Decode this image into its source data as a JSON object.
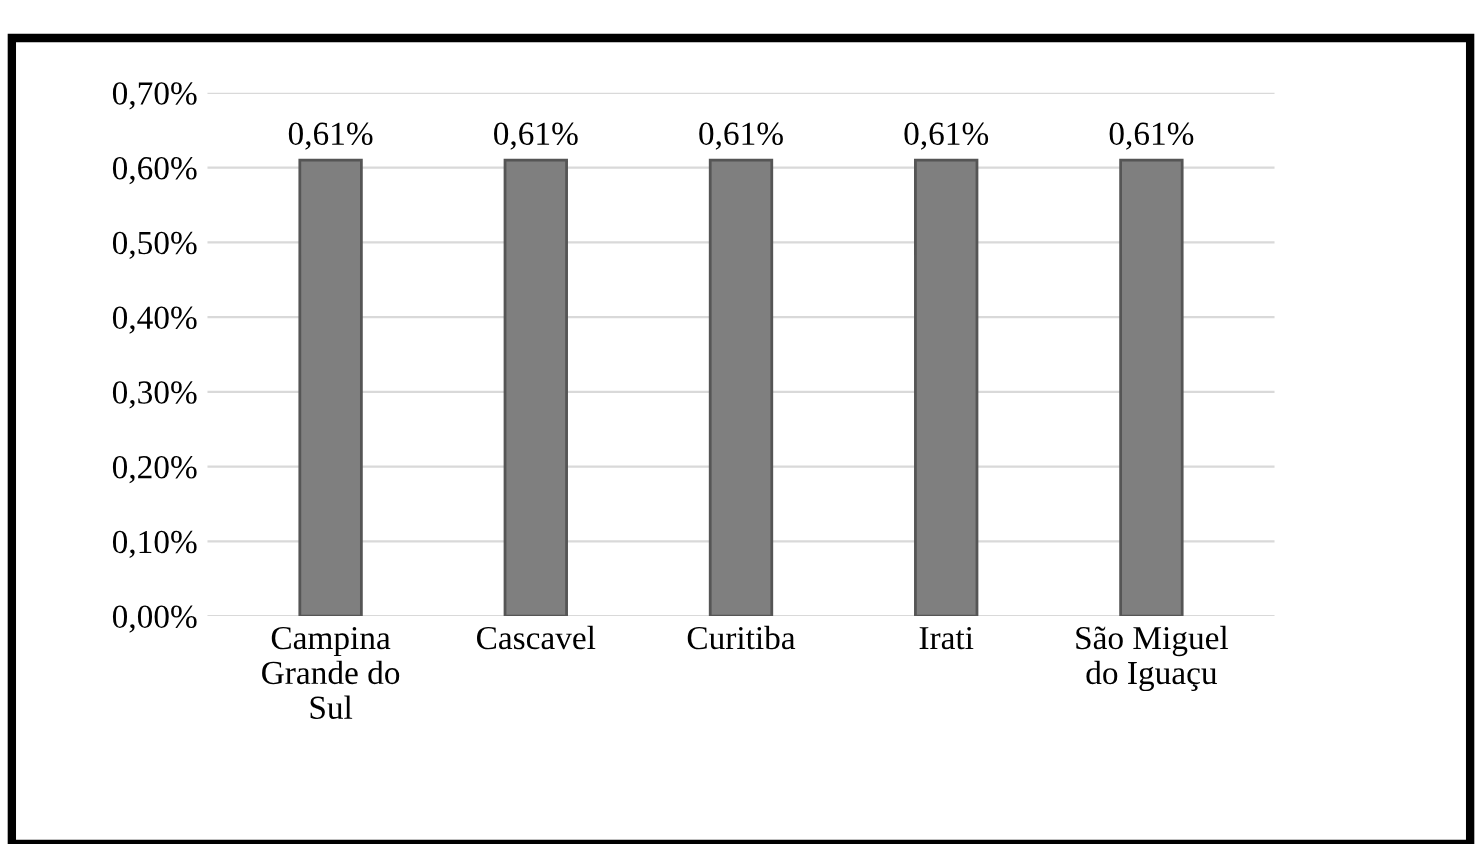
{
  "chart_data": {
    "type": "bar",
    "categories": [
      "Campina\nGrande do\nSul",
      "Cascavel",
      "Curitiba",
      "Irati",
      "São Miguel\ndo Iguaçu"
    ],
    "values": [
      0.61,
      0.61,
      0.61,
      0.61,
      0.61
    ],
    "color": "#7f7f7f",
    "value_labels": [
      "0,61%",
      "0,61%",
      "0,61%",
      "0,61%",
      "0,61%"
    ],
    "ylim": [
      0,
      0.7
    ],
    "yticks": [
      {
        "value": 0,
        "label": "0,00%"
      },
      {
        "value": 0.1,
        "label": "0,10%"
      },
      {
        "value": 0.2,
        "label": "0,20%"
      },
      {
        "value": 0.3,
        "label": "0,30%"
      },
      {
        "value": 0.4,
        "label": "0,40%"
      },
      {
        "value": 0.5,
        "label": "0,50%"
      },
      {
        "value": 0.6,
        "label": "0,60%"
      },
      {
        "value": 0.7,
        "label": "0,70%"
      }
    ],
    "grid": "y",
    "legend": false
  }
}
